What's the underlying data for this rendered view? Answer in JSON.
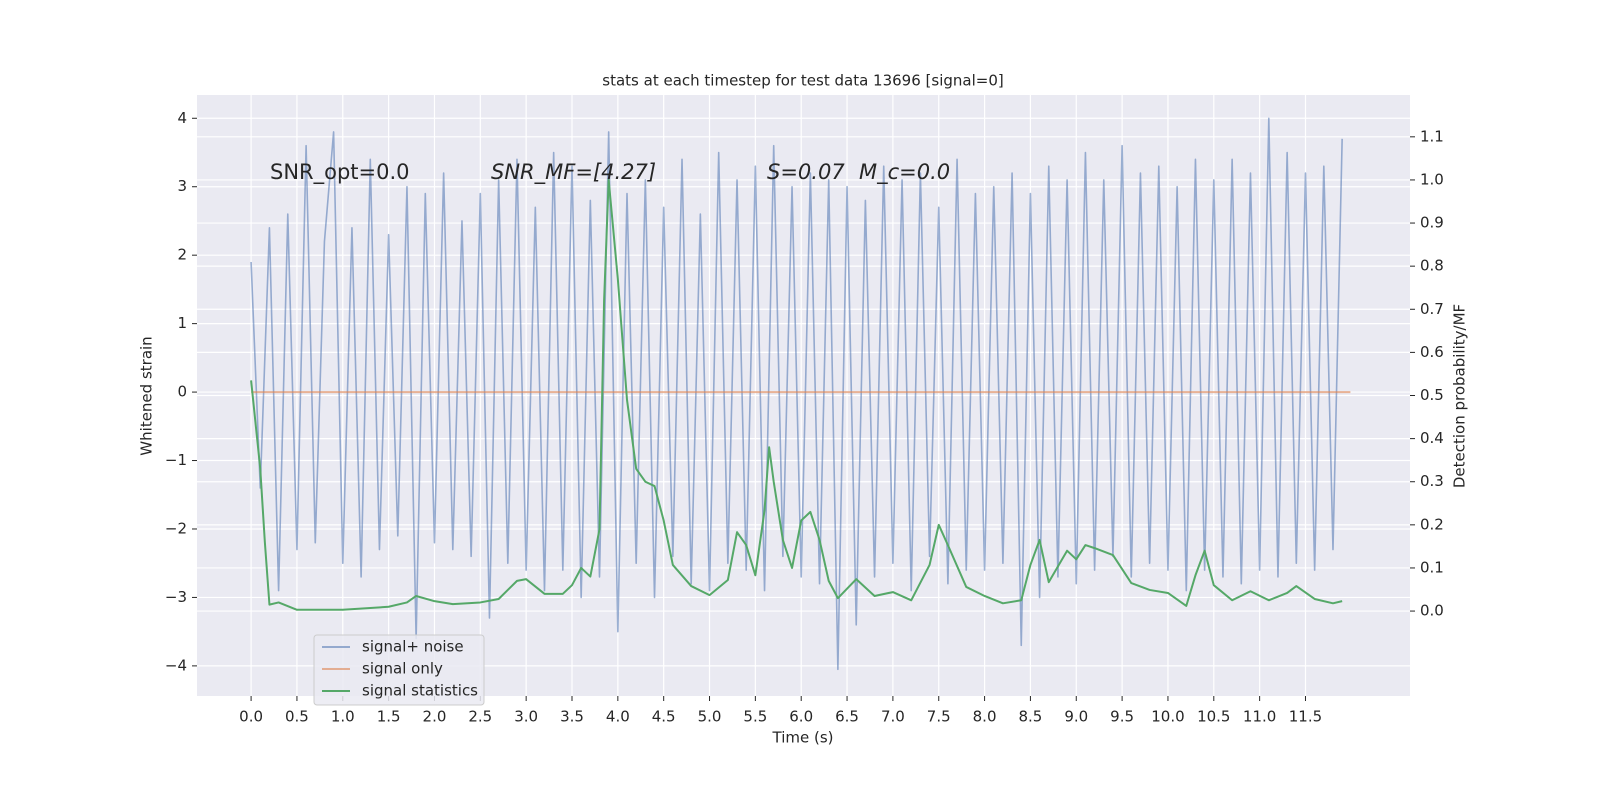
{
  "chart_data": {
    "type": "line",
    "title": "stats at each timestep for test data 13696 [signal=0]",
    "xlabel": "Time (s)",
    "ylabel": "Whitened strain",
    "y2label": "Detection probability/MF",
    "annotations": [
      "SNR_opt=0.0",
      "SNR_MF=[4.27]",
      "S=0.07",
      "M_c=0.0"
    ],
    "xlim": [
      -0.59,
      12.64
    ],
    "xticks": [
      {
        "value": 0,
        "label": "0.0"
      },
      0.5,
      {
        "value": 1,
        "label": "1.0"
      },
      1.5,
      {
        "value": 2,
        "label": "2.0"
      },
      2.5,
      {
        "value": 3,
        "label": "3.0"
      },
      3.5,
      {
        "value": 4,
        "label": "4.0"
      },
      4.5,
      {
        "value": 5,
        "label": "5.0"
      },
      5.5,
      {
        "value": 6,
        "label": "6.0"
      },
      6.5,
      {
        "value": 7,
        "label": "7.0"
      },
      7.5,
      {
        "value": 8,
        "label": "8.0"
      },
      8.5,
      {
        "value": 9,
        "label": "9.0"
      },
      9.5,
      {
        "value": 10,
        "label": "10.0"
      },
      10.5,
      {
        "value": 11,
        "label": "11.0"
      },
      11.5
    ],
    "ylim": [
      -4.44,
      4.34
    ],
    "yticks": [
      {
        "value": -4,
        "label": "−4"
      },
      {
        "value": -3,
        "label": "−3"
      },
      {
        "value": -2,
        "label": "−2"
      },
      {
        "value": -1,
        "label": "−1"
      },
      0,
      1,
      2,
      3,
      4
    ],
    "y2lim": [
      -0.197,
      1.197
    ],
    "y2ticks": [
      {
        "value": 0,
        "label": "0.0"
      },
      0.1,
      0.2,
      0.3,
      0.4,
      0.5,
      0.6,
      0.7,
      0.8,
      0.9,
      {
        "value": 1,
        "label": "1.0"
      },
      1.1
    ],
    "grid": true,
    "legend": "lower left",
    "series": [
      {
        "name": "signal+ noise",
        "color": "#4c72b0",
        "x": [
          0,
          0.1,
          0.2,
          0.3,
          0.4,
          0.5,
          0.6,
          0.7,
          0.8,
          0.9,
          1,
          1.1,
          1.2,
          1.3,
          1.4,
          1.5,
          1.6,
          1.7,
          1.8,
          1.9,
          2,
          2.1,
          2.2,
          2.3,
          2.4,
          2.5,
          2.6,
          2.7,
          2.8,
          2.9,
          3,
          3.1,
          3.2,
          3.3,
          3.4,
          3.5,
          3.6,
          3.7,
          3.8,
          3.9,
          4,
          4.1,
          4.2,
          4.3,
          4.4,
          4.5,
          4.6,
          4.7,
          4.8,
          4.9,
          5,
          5.1,
          5.2,
          5.3,
          5.4,
          5.5,
          5.6,
          5.7,
          5.8,
          5.9,
          6,
          6.1,
          6.2,
          6.3,
          6.4,
          6.5,
          6.6,
          6.7,
          6.8,
          6.9,
          7,
          7.1,
          7.2,
          7.3,
          7.4,
          7.5,
          7.6,
          7.7,
          7.8,
          7.9,
          8,
          8.1,
          8.2,
          8.3,
          8.4,
          8.5,
          8.6,
          8.7,
          8.8,
          8.9,
          9,
          9.1,
          9.2,
          9.3,
          9.4,
          9.5,
          9.6,
          9.7,
          9.8,
          9.9,
          10,
          10.1,
          10.2,
          10.3,
          10.4,
          10.5,
          10.6,
          10.7,
          10.8,
          10.9,
          11,
          11.1,
          11.2,
          11.3,
          11.4,
          11.5,
          11.6,
          11.7,
          11.8,
          11.9
        ],
        "values": [
          1.9,
          -1.4,
          2.4,
          -2.9,
          2.6,
          -2.3,
          3.6,
          -2.2,
          2.2,
          3.8,
          -2.5,
          2.4,
          -2.7,
          3.4,
          -2.3,
          2.3,
          -2.1,
          3.0,
          -3.6,
          2.9,
          -2.2,
          3.2,
          -2.3,
          2.5,
          -2.4,
          2.9,
          -3.3,
          3.1,
          -2.5,
          3.4,
          -2.6,
          2.7,
          -2.9,
          3.5,
          -2.6,
          3.3,
          -3.0,
          2.8,
          -2.7,
          3.8,
          -3.5,
          2.9,
          -2.5,
          3.1,
          -3.0,
          2.7,
          -2.4,
          3.4,
          -2.8,
          2.6,
          -2.9,
          3.5,
          -2.5,
          3.1,
          -2.6,
          3.3,
          -2.9,
          3.6,
          -2.4,
          3.0,
          -2.7,
          3.2,
          -2.8,
          3.1,
          -4.05,
          3.0,
          -3.4,
          2.8,
          -2.7,
          3.3,
          -2.5,
          3.1,
          -2.9,
          3.2,
          -2.4,
          2.7,
          -2.8,
          3.4,
          -2.6,
          2.9,
          -2.6,
          3.0,
          -2.5,
          3.2,
          -3.7,
          2.9,
          -3.0,
          3.3,
          -2.7,
          3.1,
          -2.8,
          3.5,
          -2.6,
          3.1,
          -2.4,
          3.6,
          -2.7,
          3.2,
          -2.5,
          3.3,
          -2.6,
          3.0,
          -2.9,
          3.4,
          -2.6,
          3.1,
          -2.7,
          3.4,
          -2.8,
          3.2,
          -2.6,
          4.0,
          -2.7,
          3.5,
          -2.5,
          3.2,
          -2.6,
          3.3,
          -2.3,
          3.7
        ]
      },
      {
        "name": "signal only",
        "color": "#dd8452",
        "x": [
          0,
          11.99
        ],
        "values": [
          0,
          0
        ]
      },
      {
        "name": "signal statistics",
        "color": "#55a868",
        "axis": "y2",
        "x": [
          0,
          0.1,
          0.15,
          0.2,
          0.3,
          0.5,
          1.0,
          1.5,
          1.7,
          1.8,
          2.0,
          2.2,
          2.5,
          2.7,
          2.9,
          3.0,
          3.2,
          3.4,
          3.5,
          3.6,
          3.7,
          3.8,
          3.85,
          3.9,
          4.0,
          4.1,
          4.2,
          4.3,
          4.4,
          4.5,
          4.6,
          4.8,
          5.0,
          5.2,
          5.3,
          5.4,
          5.5,
          5.6,
          5.65,
          5.7,
          5.8,
          5.9,
          6.0,
          6.1,
          6.2,
          6.3,
          6.4,
          6.6,
          6.8,
          7.0,
          7.2,
          7.4,
          7.5,
          7.6,
          7.8,
          8.0,
          8.2,
          8.4,
          8.5,
          8.6,
          8.7,
          8.9,
          9.0,
          9.1,
          9.2,
          9.4,
          9.6,
          9.8,
          10.0,
          10.2,
          10.3,
          10.4,
          10.5,
          10.7,
          10.9,
          11.1,
          11.3,
          11.4,
          11.6,
          11.8,
          11.9
        ],
        "values": [
          0.535,
          0.33,
          0.16,
          0.015,
          0.02,
          0.003,
          0.003,
          0.01,
          0.02,
          0.035,
          0.023,
          0.016,
          0.02,
          0.028,
          0.07,
          0.074,
          0.04,
          0.04,
          0.06,
          0.1,
          0.08,
          0.19,
          0.72,
          1.0,
          0.77,
          0.49,
          0.33,
          0.3,
          0.29,
          0.21,
          0.107,
          0.058,
          0.037,
          0.072,
          0.183,
          0.153,
          0.083,
          0.234,
          0.38,
          0.3,
          0.165,
          0.1,
          0.21,
          0.23,
          0.165,
          0.07,
          0.03,
          0.074,
          0.035,
          0.044,
          0.025,
          0.107,
          0.2,
          0.153,
          0.056,
          0.035,
          0.018,
          0.025,
          0.107,
          0.165,
          0.067,
          0.14,
          0.12,
          0.153,
          0.146,
          0.13,
          0.065,
          0.049,
          0.042,
          0.012,
          0.083,
          0.14,
          0.06,
          0.025,
          0.046,
          0.025,
          0.042,
          0.058,
          0.028,
          0.018,
          0.023
        ]
      }
    ]
  }
}
